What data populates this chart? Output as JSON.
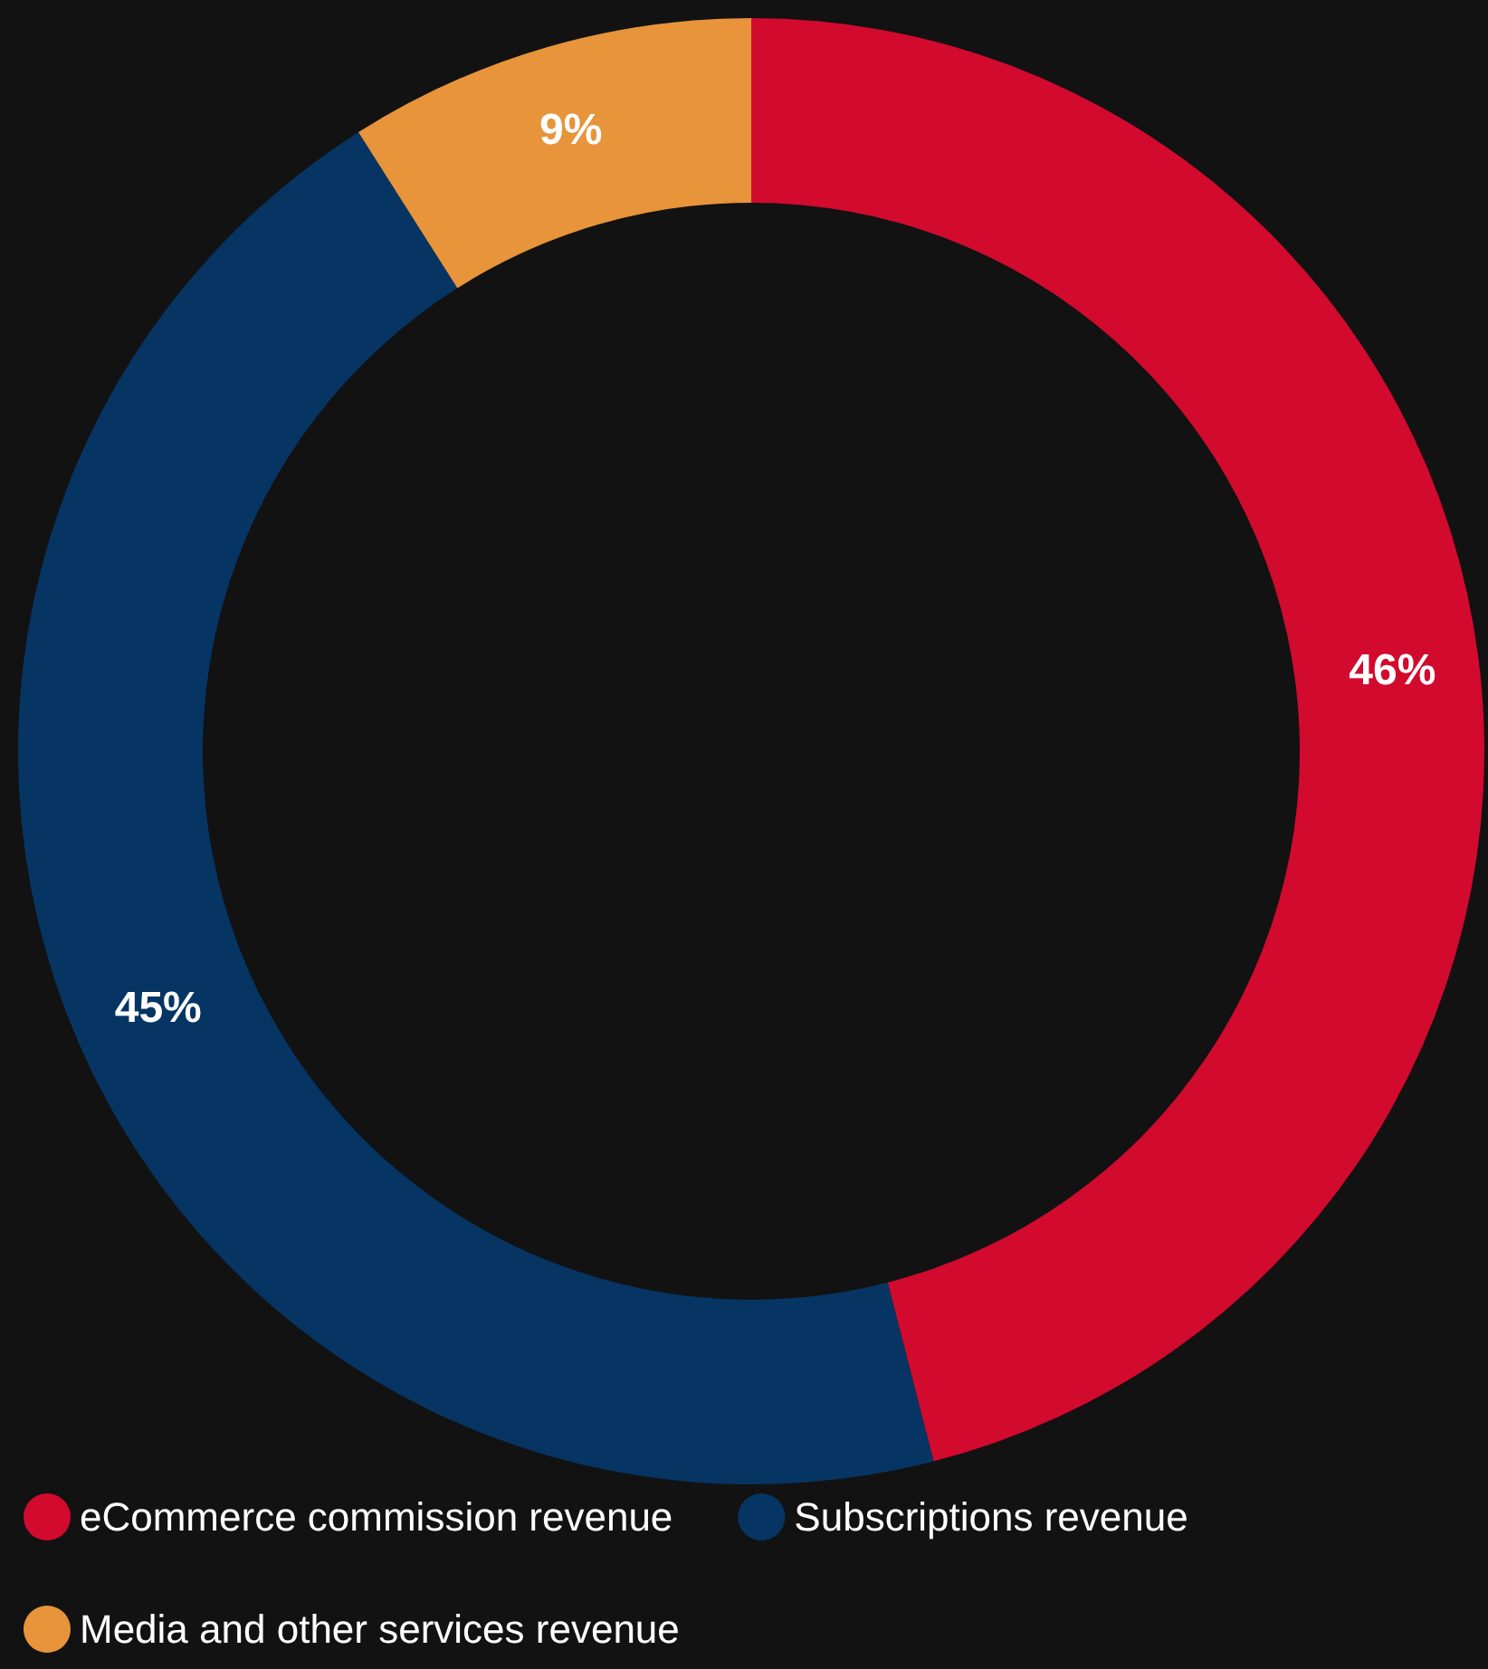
{
  "chart_data": {
    "type": "donut",
    "categories": [
      "eCommerce commission revenue",
      "Subscriptions revenue",
      "Media and other services revenue"
    ],
    "values": [
      46,
      45,
      9
    ],
    "colors": [
      "#d10a2e",
      "#063564",
      "#e8943a"
    ],
    "value_labels": [
      "46%",
      "45%",
      "9%"
    ],
    "legend": "bottom left"
  }
}
